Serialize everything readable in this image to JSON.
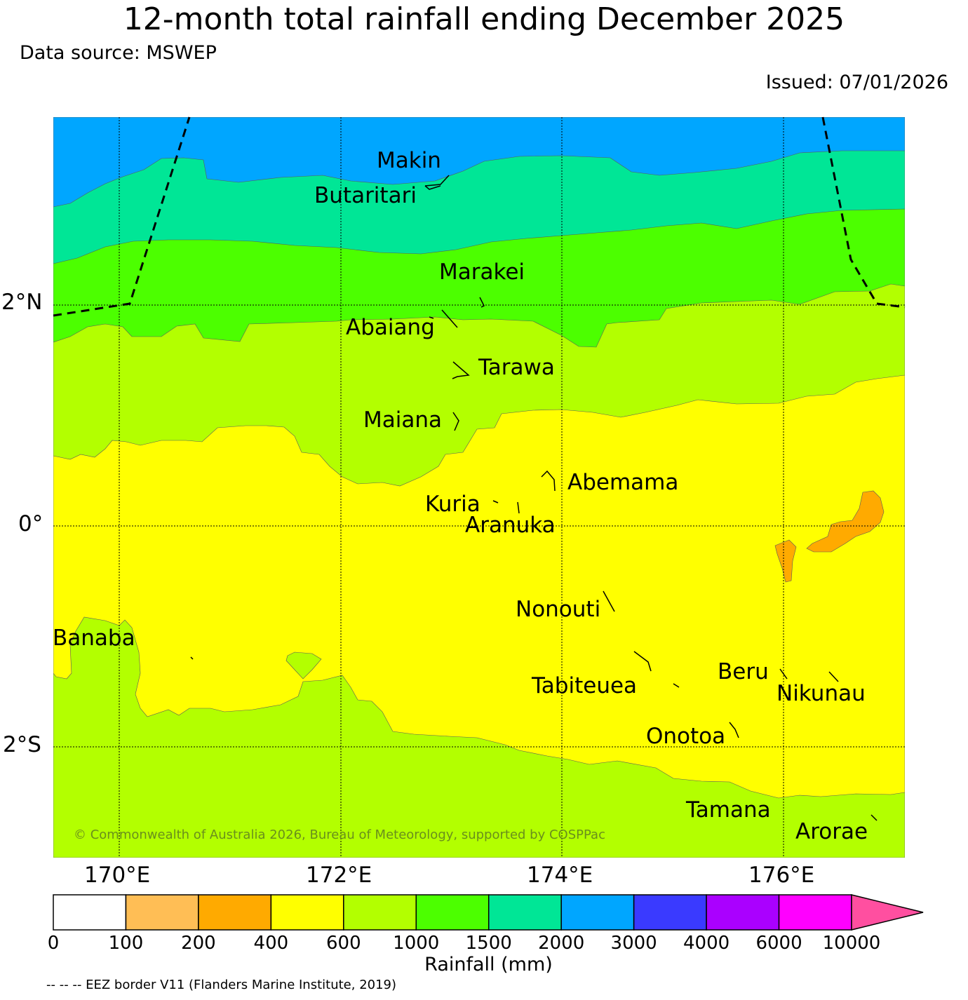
{
  "title": "12-month total rainfall ending December 2025",
  "source": "Data source: MSWEP",
  "issued": "Issued: 07/01/2026",
  "copyright": "© Commonwealth of Australia 2026, Bureau of Meteorology, supported by COSPPac",
  "eez_note": "-- -- -- EEZ border V11 (Flanders Marine Institute, 2019)",
  "lat_labels": [
    "2°N",
    "0°",
    "2°S"
  ],
  "lon_labels": [
    "170°E",
    "172°E",
    "174°E",
    "176°E"
  ],
  "islands": [
    {
      "name": "Makin"
    },
    {
      "name": "Butaritari"
    },
    {
      "name": "Marakei"
    },
    {
      "name": "Abaiang"
    },
    {
      "name": "Tarawa"
    },
    {
      "name": "Maiana"
    },
    {
      "name": "Abemama"
    },
    {
      "name": "Kuria"
    },
    {
      "name": "Aranuka"
    },
    {
      "name": "Nonouti"
    },
    {
      "name": "Banaba"
    },
    {
      "name": "Beru"
    },
    {
      "name": "Tabiteuea"
    },
    {
      "name": "Nikunau"
    },
    {
      "name": "Onotoa"
    },
    {
      "name": "Tamana"
    },
    {
      "name": "Arorae"
    }
  ],
  "colorbar": {
    "label": "Rainfall (mm)",
    "ticks": [
      "0",
      "100",
      "200",
      "400",
      "600",
      "1000",
      "1500",
      "2000",
      "3000",
      "4000",
      "6000",
      "10000"
    ],
    "colors": [
      "#ffffff",
      "#ffbe55",
      "#ffaa00",
      "#ffff00",
      "#b3ff00",
      "#4cff00",
      "#00e696",
      "#00a6ff",
      "#3a3aff",
      "#aa00ff",
      "#ff00ff"
    ],
    "extend_color": "#ff4fa0"
  },
  "map_colors": {
    "3000": "#00a6ff",
    "2000": "#00e696",
    "1500": "#4cff00",
    "1000": "#b3ff00",
    "600": "#ffff00",
    "400": "#ffaa00"
  }
}
